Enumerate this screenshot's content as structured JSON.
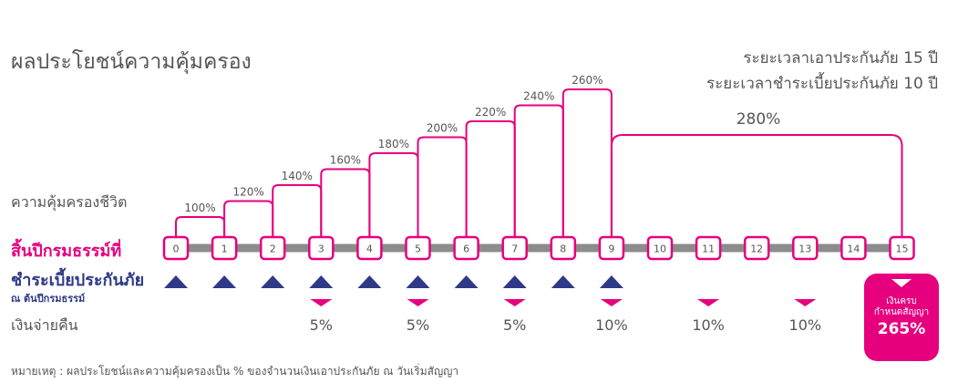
{
  "title": "ผลประโยชน์ความคุ้มครอง",
  "coverage_term": "ระยะเวลาเอาประกันภัย 15 ปี",
  "premium_term": "ระยะเวลาชำระเบี้ยประกันภัย 10 ปี",
  "labels": {
    "coverage": "ความคุ้มครองชีวิต",
    "policy_year_end": "สิ้นปีกรมธรรม์ที่",
    "premium_payment": "ชำระเบี้ยประกันภัย",
    "premium_payment_sub": "ณ ต้นปีกรมธรรม์",
    "cash_back": "เงินจ่ายคืน"
  },
  "maturity": {
    "label_line1": "เงินครบ",
    "label_line2": "กำหนดสัญญา",
    "value": "265%"
  },
  "note": "หมายเหตุ : ผลประโยชน์และความคุ้มครองเป็น % ของจำนวนเงินเอาประกันภัย ณ วันเริ่มสัญญา",
  "colors": {
    "brand": "#e6007e",
    "premium": "#2e3a87",
    "track": "#8c8c8c",
    "text": "#555555"
  },
  "chart_data": {
    "type": "step-timeline",
    "policy_years": [
      "0",
      "1",
      "2",
      "3",
      "4",
      "5",
      "6",
      "7",
      "8",
      "9",
      "10",
      "11",
      "12",
      "13",
      "14",
      "15"
    ],
    "coverage_steps": [
      {
        "from": "0",
        "to": "1",
        "label": "100%"
      },
      {
        "from": "1",
        "to": "2",
        "label": "120%"
      },
      {
        "from": "2",
        "to": "3",
        "label": "140%"
      },
      {
        "from": "3",
        "to": "4",
        "label": "160%"
      },
      {
        "from": "4",
        "to": "5",
        "label": "180%"
      },
      {
        "from": "5",
        "to": "6",
        "label": "200%"
      },
      {
        "from": "6",
        "to": "7",
        "label": "220%"
      },
      {
        "from": "7",
        "to": "8",
        "label": "240%"
      },
      {
        "from": "8",
        "to": "9",
        "label": "260%"
      },
      {
        "from": "9",
        "to": "15",
        "label": "280%"
      }
    ],
    "premium_payment_years": [
      "0",
      "1",
      "2",
      "3",
      "4",
      "5",
      "6",
      "7",
      "8",
      "9"
    ],
    "cash_back_markers": [
      "3",
      "5",
      "7",
      "9",
      "11",
      "13"
    ],
    "cash_back": [
      {
        "year": "3",
        "label": "5%"
      },
      {
        "year": "5",
        "label": "5%"
      },
      {
        "year": "7",
        "label": "5%"
      },
      {
        "year": "9",
        "label": "10%"
      },
      {
        "year": "11",
        "label": "10%"
      },
      {
        "year": "13",
        "label": "10%"
      }
    ],
    "maturity_year": "15",
    "maturity_benefit": "265%"
  }
}
